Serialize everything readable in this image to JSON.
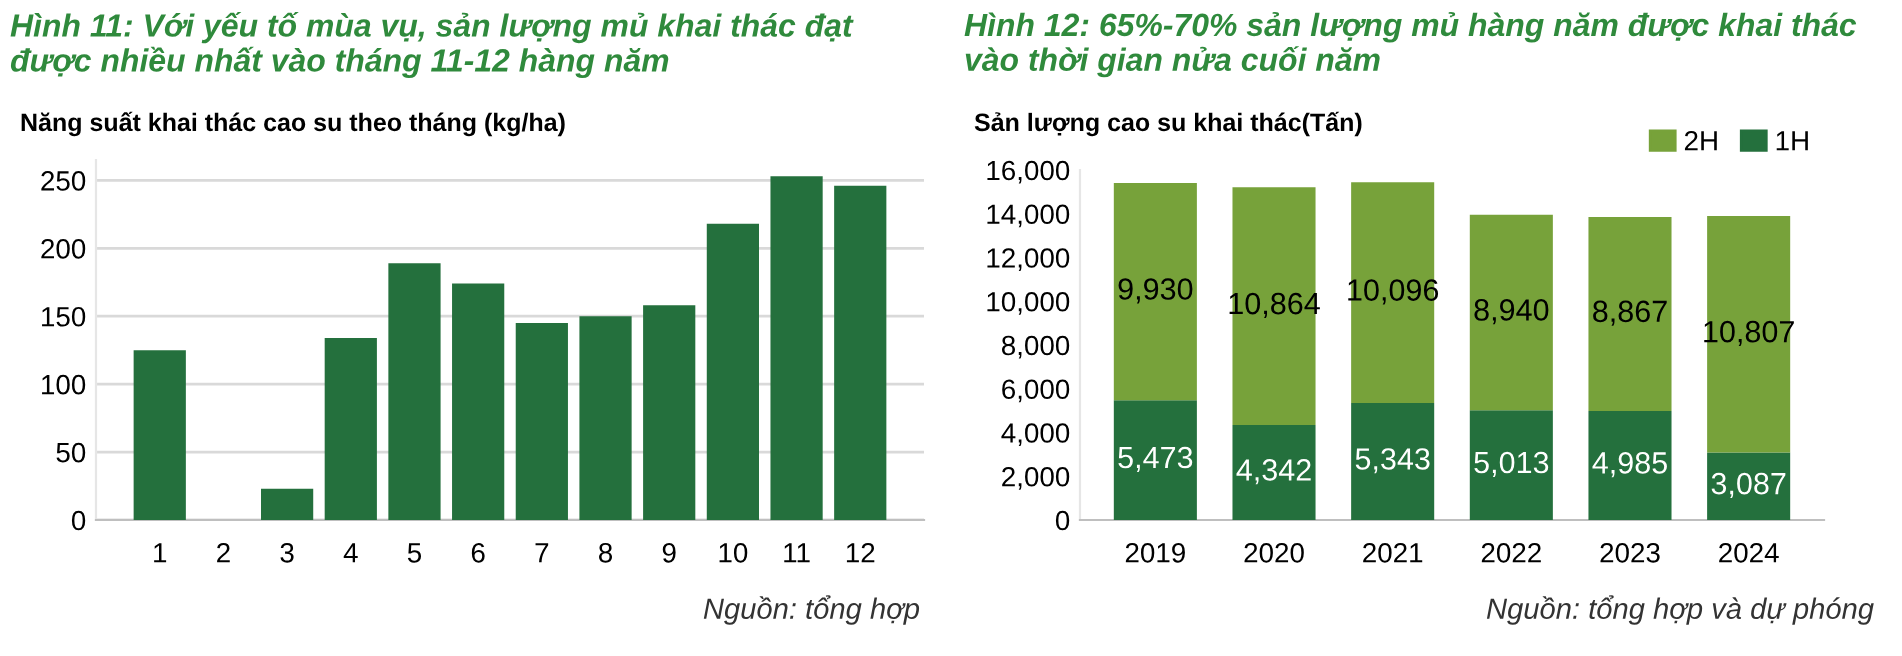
{
  "chart_data": [
    {
      "type": "bar",
      "title": "Hình 11: Với yếu tố mùa vụ, sản lượng mủ khai thác đạt được nhiều nhất vào tháng 11-12 hàng năm",
      "subtitle": "Năng suất khai thác cao su theo tháng (kg/ha)",
      "categories": [
        "1",
        "2",
        "3",
        "4",
        "5",
        "6",
        "7",
        "8",
        "9",
        "10",
        "11",
        "12"
      ],
      "values": [
        125,
        0,
        23,
        134,
        189,
        174,
        145,
        150,
        158,
        218,
        253,
        246
      ],
      "color": "#24703d",
      "ylim": [
        0,
        265
      ],
      "yticks": [
        0,
        50,
        100,
        150,
        200,
        250
      ],
      "grid": "y",
      "annotations": [
        "Nguồn: tổng hợp"
      ]
    },
    {
      "type": "bar",
      "title": "Hình 12: 65%-70% sản lượng mủ hàng năm được khai thác vào thời gian nửa cuối năm",
      "subtitle": "Sản lượng cao su khai thác(Tấn)",
      "categories": [
        "2019",
        "2020",
        "2021",
        "2022",
        "2023",
        "2024"
      ],
      "stacked": true,
      "series": [
        {
          "name": "1H",
          "color": "#24703d",
          "values": [
            5473,
            4342,
            5343,
            5013,
            4985,
            3087
          ],
          "value_labels": [
            "5,473",
            "4,342",
            "5,343",
            "5,013",
            "4,985",
            "3,087"
          ]
        },
        {
          "name": "2H",
          "color": "#77a23a",
          "values": [
            9930,
            10864,
            10096,
            8940,
            8867,
            10807
          ],
          "value_labels": [
            "9,930",
            "10,864",
            "10,096",
            "8,940",
            "8,867",
            "10,807"
          ]
        }
      ],
      "ylim": [
        0,
        16000
      ],
      "yticks": [
        {
          "value": 0,
          "label": "0"
        },
        {
          "value": 2000,
          "label": "2,000"
        },
        {
          "value": 4000,
          "label": "4,000"
        },
        {
          "value": 6000,
          "label": "6,000"
        },
        {
          "value": 8000,
          "label": "8,000"
        },
        {
          "value": 10000,
          "label": "10,000"
        },
        {
          "value": 12000,
          "label": "12,000"
        },
        {
          "value": 14000,
          "label": "14,000"
        },
        {
          "value": 16000,
          "label": "16,000"
        }
      ],
      "legend": "top right",
      "annotations": [
        "Nguồn: tổng hợp và dự phóng"
      ]
    }
  ]
}
